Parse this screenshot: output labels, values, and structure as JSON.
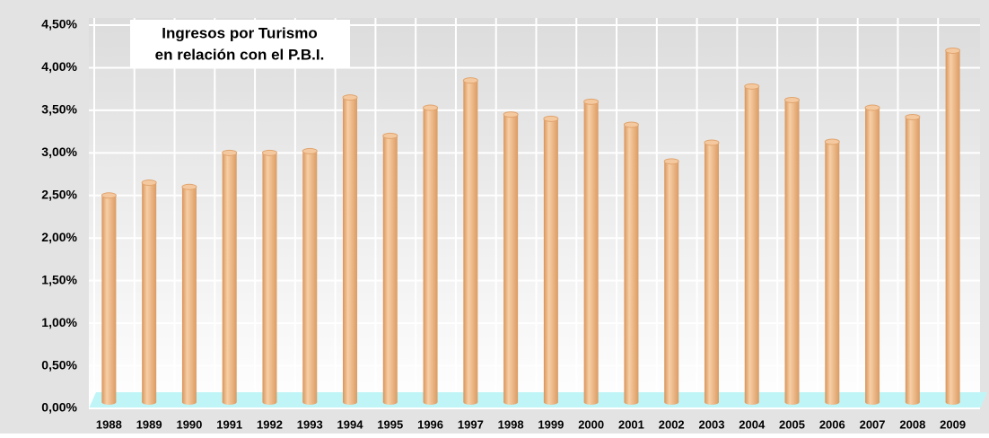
{
  "chart_data": {
    "type": "bar",
    "title": "Ingresos por Turismo",
    "subtitle": "en relación con el P.B.I.",
    "categories": [
      "1988",
      "1989",
      "1990",
      "1991",
      "1992",
      "1993",
      "1994",
      "1995",
      "1996",
      "1997",
      "1998",
      "1999",
      "2000",
      "2001",
      "2002",
      "2003",
      "2004",
      "2005",
      "2006",
      "2007",
      "2008",
      "2009"
    ],
    "values": [
      2.5,
      2.65,
      2.6,
      3.0,
      3.0,
      3.02,
      3.65,
      3.2,
      3.53,
      3.85,
      3.45,
      3.4,
      3.6,
      3.33,
      2.9,
      3.12,
      3.78,
      3.62,
      3.13,
      3.53,
      3.42,
      4.2
    ],
    "color": "#f0b985",
    "ylim": [
      0,
      4.5
    ],
    "yticks": [
      {
        "value": 0,
        "label": "0,00%"
      },
      {
        "value": 0.5,
        "label": "0,50%"
      },
      {
        "value": 1,
        "label": "1,00%"
      },
      {
        "value": 1.5,
        "label": "1,50%"
      },
      {
        "value": 2,
        "label": "2,00%"
      },
      {
        "value": 2.5,
        "label": "2,50%"
      },
      {
        "value": 3,
        "label": "3,00%"
      },
      {
        "value": 3.5,
        "label": "3,50%"
      },
      {
        "value": 4,
        "label": "4,00%"
      },
      {
        "value": 4.5,
        "label": "4,50%"
      }
    ],
    "grid": true
  }
}
